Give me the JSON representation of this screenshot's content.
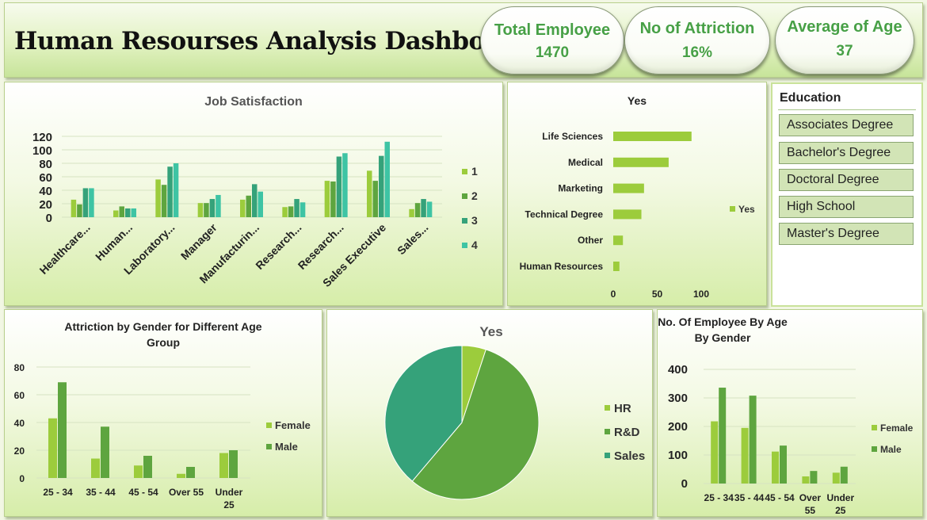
{
  "title": "Human Resourses Analysis Dashboard",
  "kpis": [
    {
      "label": "Total Employee",
      "value": "1470"
    },
    {
      "label": "No of Attriction",
      "value": "16%"
    },
    {
      "label": "Average of Age",
      "value": "37"
    }
  ],
  "education": {
    "title": "Education",
    "items": [
      "Associates Degree",
      "Bachelor's Degree",
      "Doctoral Degree",
      "High School",
      "Master's Degree"
    ]
  },
  "colors": {
    "s1": "#9ccc3c",
    "s2": "#5ea53f",
    "s3": "#35a27a",
    "s4": "#3ec4a4",
    "green_text": "#47a046"
  },
  "chart_data": [
    {
      "id": "job_satisfaction",
      "type": "bar",
      "title": "Job Satisfaction",
      "categories": [
        "Healthcare...",
        "Human...",
        "Laboratory...",
        "Manager",
        "Manufacturin...",
        "Research...",
        "Research...",
        "Sales Executive",
        "Sales..."
      ],
      "series": [
        {
          "name": "1",
          "values": [
            26,
            10,
            56,
            21,
            26,
            15,
            54,
            69,
            12
          ]
        },
        {
          "name": "2",
          "values": [
            19,
            16,
            48,
            21,
            32,
            16,
            53,
            54,
            21
          ]
        },
        {
          "name": "3",
          "values": [
            43,
            13,
            75,
            27,
            49,
            27,
            90,
            91,
            27
          ]
        },
        {
          "name": "4",
          "values": [
            43,
            13,
            80,
            33,
            38,
            22,
            95,
            112,
            23
          ]
        }
      ],
      "ylim": [
        0,
        120
      ],
      "yticks": [
        "0",
        "20",
        "40",
        "60",
        "80",
        "100",
        "120"
      ],
      "legend": "right"
    },
    {
      "id": "education_field_yes",
      "type": "bar",
      "orientation": "horizontal",
      "title": "Yes",
      "categories": [
        "Life Sciences",
        "Medical",
        "Marketing",
        "Technical Degree",
        "Other",
        "Human Resources"
      ],
      "series": [
        {
          "name": "Yes",
          "values": [
            89,
            63,
            35,
            32,
            11,
            7
          ]
        }
      ],
      "xlim": [
        0,
        100
      ],
      "xticks": [
        "0",
        "50",
        "100"
      ],
      "legend": "right"
    },
    {
      "id": "attrition_gender_age",
      "type": "bar",
      "title": "Attriction by Gender  for Different Age Group",
      "title_lines": [
        "Attriction by Gender  for Different Age",
        "Group"
      ],
      "categories": [
        "25 - 34",
        "35 - 44",
        "45 - 54",
        "Over 55",
        "Under 25"
      ],
      "series": [
        {
          "name": "Female",
          "values": [
            43,
            14,
            9,
            3,
            18
          ]
        },
        {
          "name": "Male",
          "values": [
            69,
            37,
            16,
            8,
            20
          ]
        }
      ],
      "ylim": [
        0,
        80
      ],
      "yticks": [
        "0",
        "20",
        "40",
        "60",
        "80"
      ],
      "legend": "right"
    },
    {
      "id": "department_yes",
      "type": "pie",
      "title": "Yes",
      "labels": [
        "HR",
        "R&D",
        "Sales"
      ],
      "values": [
        12,
        133,
        92
      ],
      "legend": "right"
    },
    {
      "id": "employee_age_gender",
      "type": "bar",
      "title": "No. Of Employee By Age By Gender",
      "title_lines": [
        "No. Of Employee By Age",
        "By Gender"
      ],
      "categories": [
        "25 - 34",
        "35 - 44",
        "45 - 54",
        "Over 55",
        "Under 25"
      ],
      "series": [
        {
          "name": "Female",
          "values": [
            218,
            195,
            112,
            25,
            38
          ]
        },
        {
          "name": "Male",
          "values": [
            336,
            308,
            133,
            44,
            59
          ]
        }
      ],
      "ylim": [
        0,
        400
      ],
      "yticks": [
        "0",
        "100",
        "200",
        "300",
        "400"
      ],
      "legend": "right"
    }
  ]
}
